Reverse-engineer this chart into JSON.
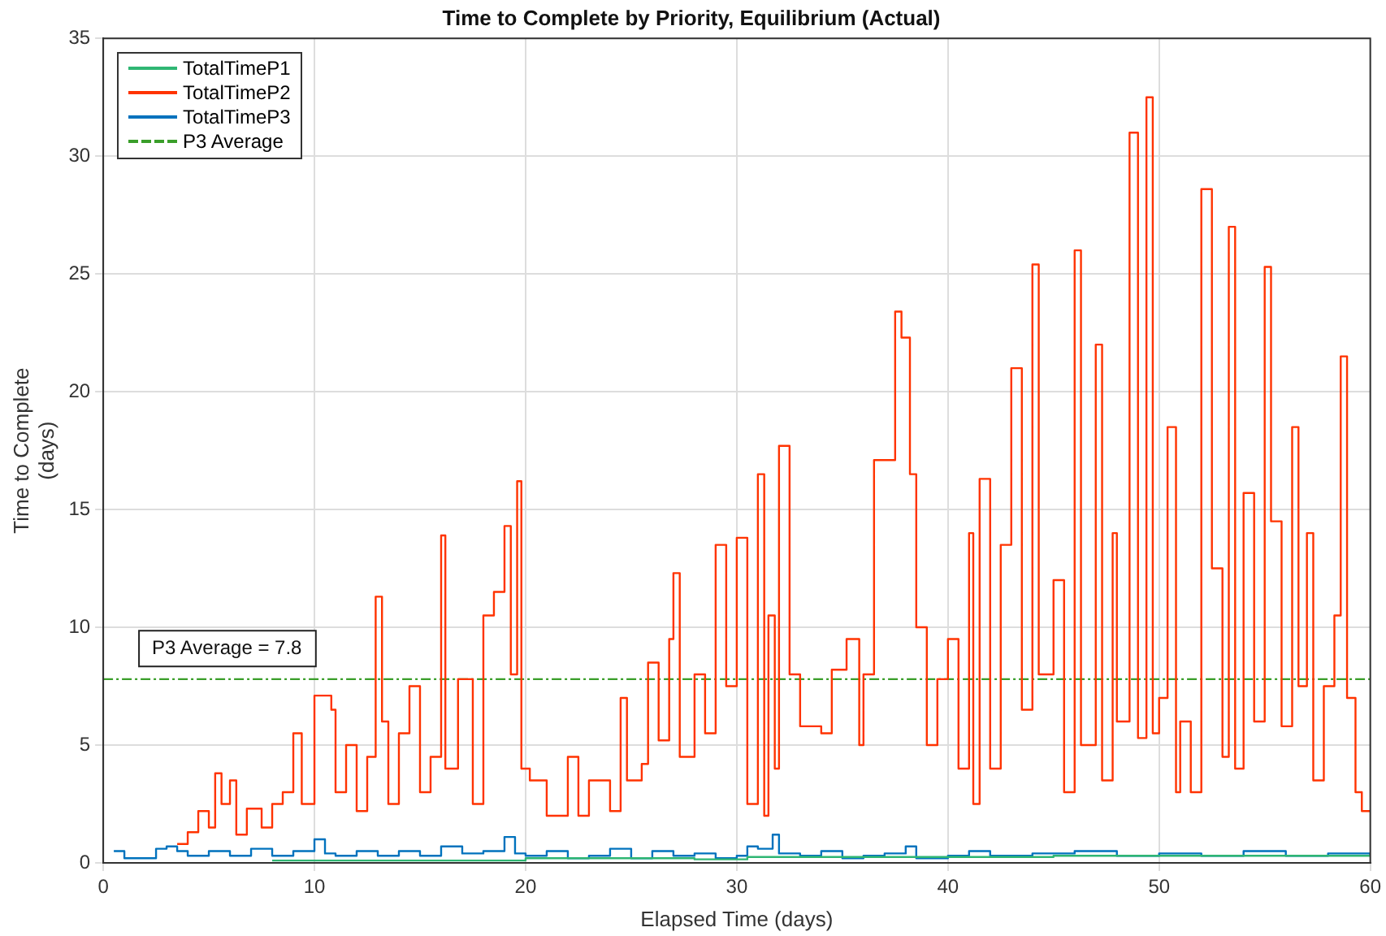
{
  "chart_data": {
    "type": "step",
    "title": "Time to Complete by Priority, Equilibrium (Actual)",
    "xlabel": "Elapsed Time (days)",
    "ylabel": "Time to Complete\n(days)",
    "xlim": [
      0,
      60
    ],
    "xticks": [
      0,
      10,
      20,
      30,
      40,
      50,
      60
    ],
    "ylim": [
      0,
      35
    ],
    "yticks": [
      0,
      5,
      10,
      15,
      20,
      25,
      30,
      35
    ],
    "grid": true,
    "legend": "top left",
    "marker": "none",
    "annotations": [
      "P3 Average = 7.8"
    ],
    "series": [
      {
        "name": "TotalTimeP1",
        "color": "#2fb673",
        "x": [
          8,
          15,
          20,
          28,
          30.5,
          35,
          45,
          60
        ],
        "values": [
          0.1,
          0.1,
          0.2,
          0.15,
          0.25,
          0.25,
          0.3,
          0.3
        ]
      },
      {
        "name": "TotalTimeP2",
        "color": "#ff3300",
        "x": [
          3.5,
          4,
          4.5,
          5,
          5.3,
          5.6,
          6,
          6.3,
          6.8,
          7.5,
          8,
          8.5,
          9,
          9.4,
          10,
          10.8,
          11,
          11.5,
          12,
          12.5,
          12.9,
          13.2,
          13.5,
          14,
          14.5,
          15,
          15.5,
          16,
          16.2,
          16.8,
          17.5,
          18,
          18.5,
          19,
          19.3,
          19.6,
          19.8,
          20.2,
          21,
          22,
          22.5,
          23,
          24,
          24.5,
          24.8,
          25.5,
          25.8,
          26.3,
          26.8,
          27,
          27.3,
          28,
          28.5,
          29,
          29.5,
          30,
          30.5,
          31,
          31.3,
          31.5,
          31.8,
          32,
          32.5,
          33,
          34,
          34.5,
          35.2,
          35.8,
          36,
          36.5,
          37.5,
          37.8,
          38.2,
          38.5,
          39,
          39.5,
          40,
          40.5,
          41,
          41.2,
          41.5,
          42,
          42.5,
          43,
          43.5,
          44,
          44.3,
          45,
          45.5,
          46,
          46.3,
          47,
          47.3,
          47.8,
          48,
          48.6,
          49,
          49.4,
          49.7,
          50,
          50.4,
          50.8,
          51,
          51.5,
          52,
          52.5,
          53,
          53.3,
          53.6,
          54,
          54.5,
          55,
          55.3,
          55.8,
          56.3,
          56.6,
          57,
          57.3,
          57.8,
          58.3,
          58.6,
          58.9,
          59.3,
          59.6,
          60
        ],
        "values": [
          0.8,
          1.3,
          2.2,
          1.5,
          3.8,
          2.5,
          3.5,
          1.2,
          2.3,
          1.5,
          2.5,
          3,
          5.5,
          2.5,
          7.1,
          6.5,
          3,
          5,
          2.2,
          4.5,
          11.3,
          6,
          2.5,
          5.5,
          7.5,
          3,
          4.5,
          13.9,
          4,
          7.8,
          2.5,
          10.5,
          11.5,
          14.3,
          8,
          16.2,
          4,
          3.5,
          2,
          4.5,
          2,
          3.5,
          2.2,
          7,
          3.5,
          4.2,
          8.5,
          5.2,
          9.5,
          12.3,
          4.5,
          8,
          5.5,
          13.5,
          7.5,
          13.8,
          2.5,
          16.5,
          2,
          10.5,
          4,
          17.7,
          8,
          5.8,
          5.5,
          8.2,
          9.5,
          5,
          8,
          17.1,
          23.4,
          22.3,
          16.5,
          10,
          5,
          7.8,
          9.5,
          4,
          14,
          2.5,
          16.3,
          4,
          13.5,
          21,
          6.5,
          25.4,
          8,
          12,
          3,
          26,
          5,
          22,
          3.5,
          14,
          6,
          31,
          5.3,
          32.5,
          5.5,
          7,
          18.5,
          3,
          6,
          3,
          28.6,
          12.5,
          4.5,
          27,
          4,
          15.7,
          6,
          25.3,
          14.5,
          5.8,
          18.5,
          7.5,
          14,
          3.5,
          7.5,
          10.5,
          21.5,
          7,
          3,
          2.2,
          2.2
        ]
      },
      {
        "name": "TotalTimeP3",
        "color": "#0072bd",
        "x": [
          0.5,
          1,
          2,
          2.5,
          3,
          3.5,
          4,
          5,
          6,
          7,
          8,
          9,
          10,
          10.5,
          11,
          12,
          13,
          14,
          15,
          16,
          17,
          18,
          19,
          19.5,
          20,
          21,
          22,
          23,
          24,
          25,
          26,
          27,
          28,
          29,
          30,
          30.5,
          31,
          31.7,
          32,
          33,
          34,
          35,
          36,
          37,
          38,
          38.5,
          40,
          41,
          42,
          44,
          46,
          48,
          50,
          52,
          54,
          56,
          58,
          60
        ],
        "values": [
          0.5,
          0.2,
          0.2,
          0.6,
          0.7,
          0.5,
          0.3,
          0.5,
          0.3,
          0.6,
          0.3,
          0.5,
          1,
          0.4,
          0.3,
          0.5,
          0.3,
          0.5,
          0.3,
          0.7,
          0.4,
          0.5,
          1.1,
          0.4,
          0.3,
          0.5,
          0.2,
          0.3,
          0.6,
          0.2,
          0.5,
          0.3,
          0.4,
          0.2,
          0.3,
          0.7,
          0.6,
          1.2,
          0.4,
          0.3,
          0.5,
          0.2,
          0.3,
          0.4,
          0.7,
          0.2,
          0.3,
          0.5,
          0.3,
          0.4,
          0.5,
          0.3,
          0.4,
          0.3,
          0.5,
          0.3,
          0.4,
          0.3
        ]
      },
      {
        "name": "P3 Average",
        "type": "line",
        "color": "#3a9e2a",
        "line_style": "dashed",
        "x": [
          0,
          60
        ],
        "values": [
          7.8,
          7.8
        ]
      }
    ]
  }
}
